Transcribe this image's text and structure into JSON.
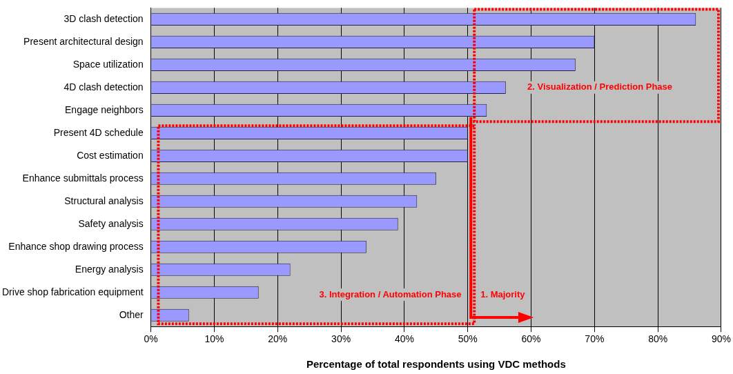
{
  "chart_data": {
    "type": "bar",
    "orientation": "horizontal",
    "xlabel": "Percentage of total respondents using VDC methods",
    "categories": [
      "3D clash detection",
      "Present architectural design",
      "Space utilization",
      "4D clash detection",
      "Engage neighbors",
      "Present 4D schedule",
      "Cost estimation",
      "Enhance submittals process",
      "Structural analysis",
      "Safety analysis",
      "Enhance shop drawing process",
      "Energy analysis",
      "Drive shop fabrication equipment",
      "Other"
    ],
    "values": [
      86,
      70,
      67,
      56,
      53,
      50,
      50,
      45,
      42,
      39,
      34,
      22,
      17,
      6
    ],
    "color": "#9999ff",
    "xlim": [
      0,
      90
    ],
    "xticks": [
      {
        "value": 0,
        "label": "0%"
      },
      {
        "value": 10,
        "label": "10%"
      },
      {
        "value": 20,
        "label": "20%"
      },
      {
        "value": 30,
        "label": "30%"
      },
      {
        "value": 40,
        "label": "40%"
      },
      {
        "value": 50,
        "label": "50%"
      },
      {
        "value": 60,
        "label": "60%"
      },
      {
        "value": 70,
        "label": "70%"
      },
      {
        "value": 80,
        "label": "80%"
      },
      {
        "value": 90,
        "label": "90%"
      }
    ],
    "grid": "x",
    "legend": false,
    "annotations": [
      "1. Majority",
      "2. Visualization / Prediction Phase",
      "3. Integration / Automation Phase"
    ]
  }
}
